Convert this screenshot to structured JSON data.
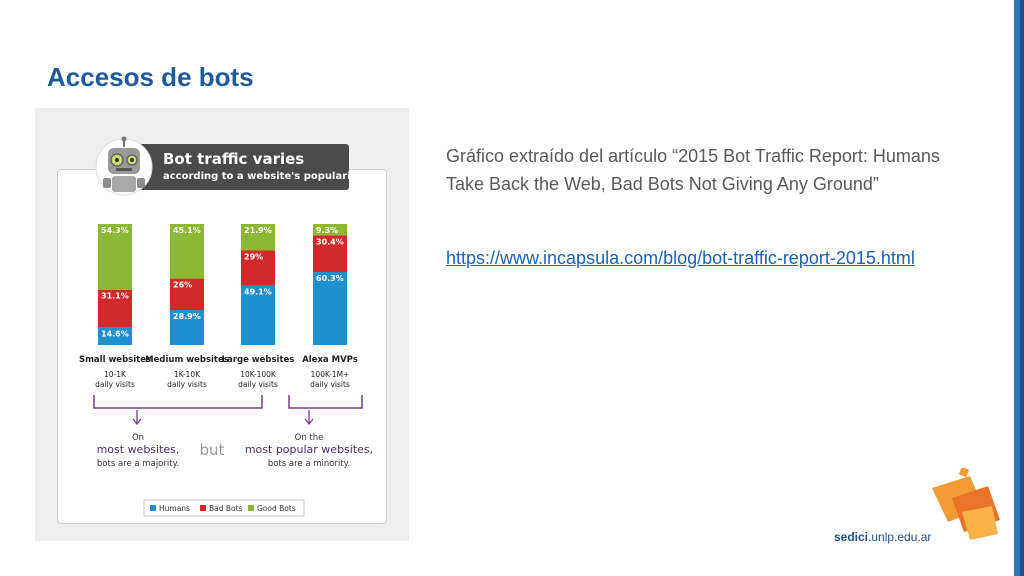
{
  "slide": {
    "title": "Accesos de bots",
    "description": "Gráfico extraído del artículo “2015 Bot Traffic Report: Humans Take Back the Web, Bad Bots Not Giving Any Ground”",
    "link": "https://www.incapsula.com/blog/bot-traffic-report-2015.html",
    "footer_brand_bold": "sedici",
    "footer_brand_rest": ".unlp.edu.ar"
  },
  "colors": {
    "title": "#1f5a9e",
    "humans": "#1e8fcf",
    "bad_bots": "#d12a2a",
    "good_bots": "#8db832",
    "bracket": "#7a3a8c"
  },
  "chart_data": {
    "type": "bar",
    "stacked": true,
    "title": "Bot traffic varies",
    "subtitle": "according to a website's popularity",
    "categories": [
      "Small websites",
      "Medium websites",
      "Large websites",
      "Alexa MVPs"
    ],
    "category_sublabels": [
      [
        "10-1K",
        "daily visits"
      ],
      [
        "1K-10K",
        "daily visits"
      ],
      [
        "10K-100K",
        "daily visits"
      ],
      [
        "100K-1M+",
        "daily visits"
      ]
    ],
    "series": [
      {
        "name": "Humans",
        "values": [
          14.6,
          28.9,
          49.1,
          60.3
        ],
        "labels": [
          "14.6%",
          "28.9%",
          "49.1%",
          "60.3%"
        ]
      },
      {
        "name": "Bad Bots",
        "values": [
          31.1,
          26,
          29,
          30.4
        ],
        "labels": [
          "31.1%",
          "26%",
          "29%",
          "30.4%"
        ]
      },
      {
        "name": "Good Bots",
        "values": [
          54.3,
          45.1,
          21.9,
          9.3
        ],
        "labels": [
          "54.3%",
          "45.1%",
          "21.9%",
          "9.3%"
        ]
      }
    ],
    "ylim": [
      0,
      100
    ],
    "legend": [
      "Humans",
      "Bad Bots",
      "Good Bots"
    ],
    "legend_position": "bottom",
    "annotations": {
      "left_line1": "On",
      "left_line2": "most websites,",
      "left_line3": "bots are a majority.",
      "middle": "but",
      "right_line1": "On the",
      "right_line2": "most popular websites,",
      "right_line3": "bots are a minority."
    }
  }
}
